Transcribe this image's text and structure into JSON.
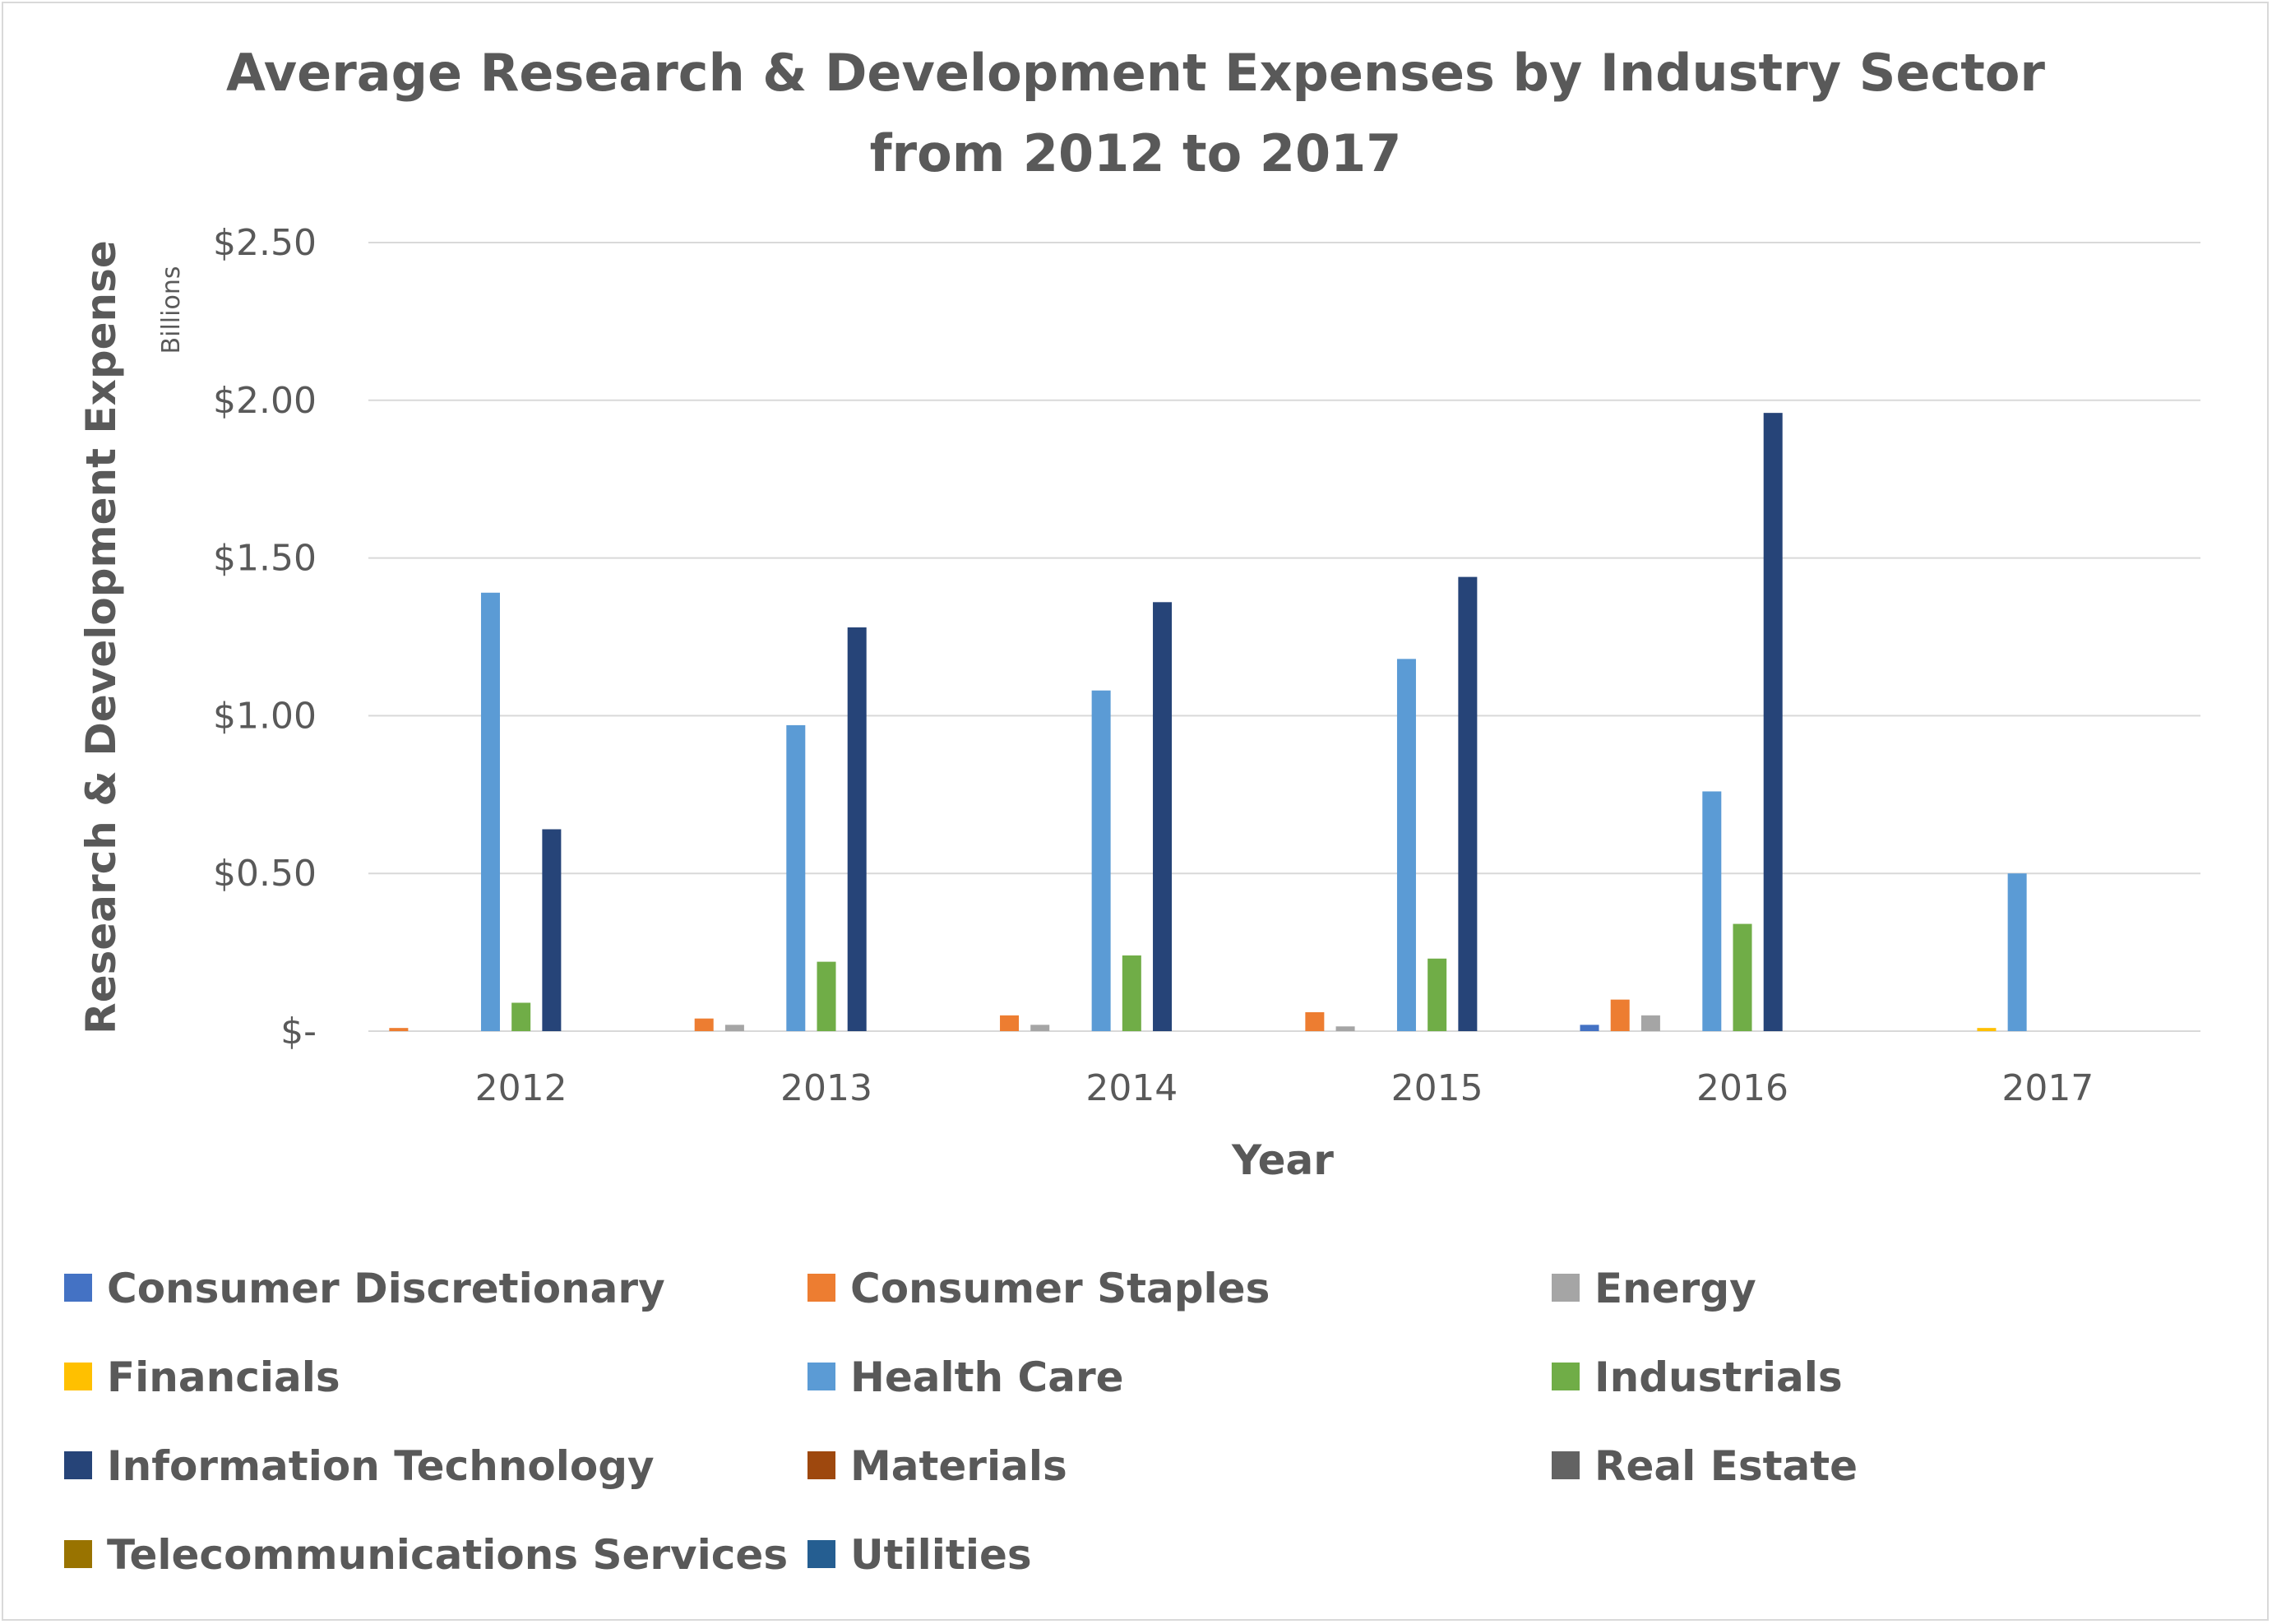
{
  "chart_data": {
    "type": "bar",
    "title": "Average Research & Development Expenses by Industry Sector from 2012 to 2017",
    "title_lines": [
      "Average Research & Development Expenses by Industry Sector",
      "from 2012 to 2017"
    ],
    "xlabel": "Year",
    "ylabel": "Research & Development  Expense",
    "y_unit": "Billions",
    "ylim": [
      0,
      2.5
    ],
    "y_ticks": [
      {
        "value": 0,
        "label": "$-"
      },
      {
        "value": 0.5,
        "label": "$0.50"
      },
      {
        "value": 1.0,
        "label": "$1.00"
      },
      {
        "value": 1.5,
        "label": "$1.50"
      },
      {
        "value": 2.0,
        "label": "$2.00"
      },
      {
        "value": 2.5,
        "label": "$2.50"
      }
    ],
    "grid": true,
    "legend_position": "bottom",
    "categories": [
      "2012",
      "2013",
      "2014",
      "2015",
      "2016",
      "2017"
    ],
    "series": [
      {
        "name": "Consumer Discretionary",
        "color": "#4472c4",
        "values": [
          0,
          0,
          0,
          0,
          0.02,
          0
        ]
      },
      {
        "name": "Consumer Staples",
        "color": "#ed7d31",
        "values": [
          0.01,
          0.04,
          0.05,
          0.06,
          0.1,
          0
        ]
      },
      {
        "name": "Energy",
        "color": "#a5a5a5",
        "values": [
          0,
          0.02,
          0.02,
          0.015,
          0.05,
          0
        ]
      },
      {
        "name": "Financials",
        "color": "#ffc000",
        "values": [
          0,
          0,
          0,
          0,
          0,
          0.01
        ]
      },
      {
        "name": "Health Care",
        "color": "#5b9bd5",
        "values": [
          1.39,
          0.97,
          1.08,
          1.18,
          0.76,
          0.5
        ]
      },
      {
        "name": "Industrials",
        "color": "#70ad47",
        "values": [
          0.09,
          0.22,
          0.24,
          0.23,
          0.34,
          0
        ]
      },
      {
        "name": "Information Technology",
        "color": "#264478",
        "values": [
          0.64,
          1.28,
          1.36,
          1.44,
          1.96,
          0
        ]
      },
      {
        "name": "Materials",
        "color": "#9e480e",
        "values": [
          0,
          0,
          0,
          0,
          0,
          0
        ]
      },
      {
        "name": "Real Estate",
        "color": "#636363",
        "values": [
          0,
          0,
          0,
          0,
          0,
          0
        ]
      },
      {
        "name": "Telecommunications Services",
        "color": "#997300",
        "values": [
          0,
          0,
          0,
          0,
          0,
          0
        ]
      },
      {
        "name": "Utilities",
        "color": "#255e91",
        "values": [
          0,
          0,
          0,
          0,
          0,
          0
        ]
      }
    ]
  }
}
